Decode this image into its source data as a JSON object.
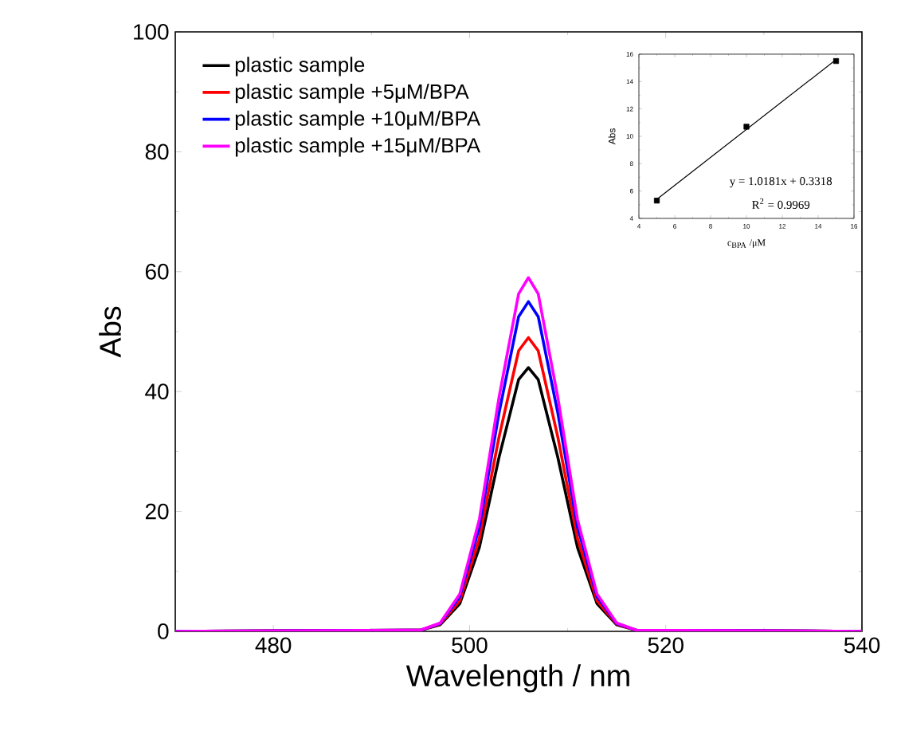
{
  "chart_data": [
    {
      "type": "line",
      "xlabel": "Wavelength / nm",
      "ylabel": "Abs",
      "x": [
        470,
        495,
        497,
        499,
        501,
        503,
        505,
        506,
        507,
        509,
        511,
        513,
        515,
        517,
        540
      ],
      "series": [
        {
          "name": "plastic sample",
          "color": "#000000",
          "values": [
            0,
            0.2,
            1.1,
            4.6,
            14,
            29,
            42,
            44,
            42,
            29,
            14,
            4.6,
            1.1,
            0.2,
            0
          ]
        },
        {
          "name": "plastic sample +5μM/BPA",
          "color": "#ff0000",
          "values": [
            0,
            0.2,
            1.2,
            5.1,
            15.5,
            32.4,
            46.8,
            49,
            46.8,
            32.4,
            15.5,
            5.1,
            1.2,
            0.2,
            0
          ]
        },
        {
          "name": "plastic sample +10μM/BPA",
          "color": "#0000ff",
          "values": [
            0,
            0.2,
            1.3,
            5.8,
            17.4,
            36.4,
            52.5,
            55,
            52.5,
            36.4,
            17.4,
            5.8,
            1.3,
            0.2,
            0
          ]
        },
        {
          "name": "plastic sample +15μM/BPA",
          "color": "#ff00ff",
          "values": [
            0,
            0.2,
            1.4,
            6.2,
            18.7,
            39,
            56.3,
            59,
            56.3,
            39,
            18.7,
            6.2,
            1.4,
            0.2,
            0
          ]
        }
      ],
      "xlim": [
        470,
        540
      ],
      "xticks": [
        480,
        500,
        520,
        540
      ],
      "ylim": [
        0,
        100
      ],
      "yticks": [
        0,
        20,
        40,
        60,
        80,
        100
      ],
      "legend": "top left",
      "line_style": "solid"
    },
    {
      "type": "scatter",
      "xlabel": "c$_{BPA}$ /μM",
      "ylabel": "Abs",
      "x": [
        5,
        10,
        15
      ],
      "series": [
        {
          "color": "#000000",
          "marker": "square",
          "values": [
            5.3,
            10.7,
            15.5
          ]
        },
        {
          "type": "line",
          "color": "#000000",
          "marker": "none",
          "x": [
            5,
            15
          ],
          "values": [
            5.4,
            15.6
          ]
        }
      ],
      "xlim": [
        4,
        16
      ],
      "xticks": [
        4,
        6,
        8,
        10,
        12,
        14,
        16
      ],
      "ylim": [
        4,
        16
      ],
      "yticks": [
        4,
        6,
        8,
        10,
        12,
        14,
        16
      ],
      "annotations": [
        "y = 1.0181x + 0.3318",
        "R$^{2}$ = 0.9969"
      ]
    }
  ]
}
